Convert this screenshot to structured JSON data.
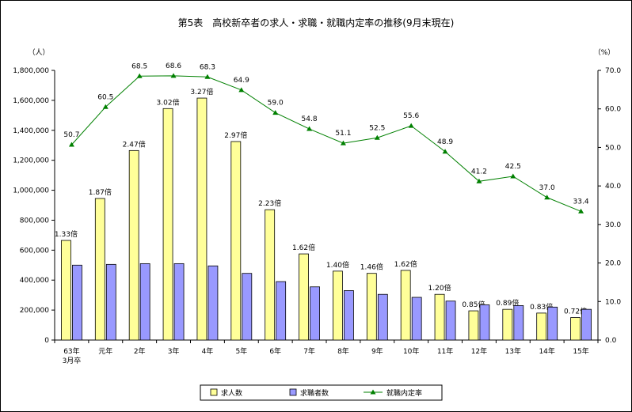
{
  "chart_data": {
    "type": "bar",
    "title": "第5表　高校新卒者の求人・求職・就職内定率の推移(9月末現在)",
    "y_left_unit": "（人）",
    "y_right_unit": "（%）",
    "ylim_left": [
      0,
      1800000
    ],
    "ylim_right": [
      0,
      70
    ],
    "y_left_ticks": [
      "0",
      "200,000",
      "400,000",
      "600,000",
      "800,000",
      "1,000,000",
      "1,200,000",
      "1,400,000",
      "1,600,000",
      "1,800,000"
    ],
    "y_right_ticks": [
      "0.0",
      "10.0",
      "20.0",
      "30.0",
      "40.0",
      "50.0",
      "60.0",
      "70.0"
    ],
    "categories": [
      [
        "63年",
        "3月卒"
      ],
      [
        "元年"
      ],
      [
        "2年"
      ],
      [
        "3年"
      ],
      [
        "4年"
      ],
      [
        "5年"
      ],
      [
        "6年"
      ],
      [
        "7年"
      ],
      [
        "8年"
      ],
      [
        "9年"
      ],
      [
        "10年"
      ],
      [
        "11年"
      ],
      [
        "12年"
      ],
      [
        "13年"
      ],
      [
        "14年"
      ],
      [
        "15年"
      ]
    ],
    "series": [
      {
        "name": "求人数",
        "kind": "bar",
        "color": "#ffff99",
        "values": [
          665000,
          945000,
          1265000,
          1545000,
          1615000,
          1325000,
          870000,
          575000,
          460000,
          445000,
          465000,
          305000,
          195000,
          205000,
          180000,
          150000
        ]
      },
      {
        "name": "求職者数",
        "kind": "bar",
        "color": "#9999ff",
        "values": [
          500000,
          505000,
          510000,
          510000,
          495000,
          445000,
          390000,
          355000,
          330000,
          305000,
          285000,
          260000,
          235000,
          230000,
          220000,
          205000
        ]
      },
      {
        "name": "就職内定率",
        "kind": "line",
        "axis": "right",
        "color": "#008000",
        "values": [
          50.7,
          60.5,
          68.5,
          68.6,
          68.3,
          64.9,
          59.0,
          54.8,
          51.1,
          52.5,
          55.6,
          48.9,
          41.2,
          42.5,
          37.0,
          33.4
        ],
        "labels": [
          "50.7",
          "60.5",
          "68.5",
          "68.6",
          "68.3",
          "64.9",
          "59.0",
          "54.8",
          "51.1",
          "52.5",
          "55.6",
          "48.9",
          "41.2",
          "42.5",
          "37.0",
          "33.4"
        ]
      }
    ],
    "ratio_labels": [
      "1.33倍",
      "1.87倍",
      "2.47倍",
      "3.02倍",
      "3.27倍",
      "2.97倍",
      "2.23倍",
      "1.62倍",
      "1.40倍",
      "1.46倍",
      "1.62倍",
      "1.20倍",
      "0.85倍",
      "0.89倍",
      "0.83倍",
      "0.72倍"
    ],
    "legend": [
      "求人数",
      "求職者数",
      "就職内定率"
    ],
    "legend_position": "bottom",
    "grid": false
  }
}
